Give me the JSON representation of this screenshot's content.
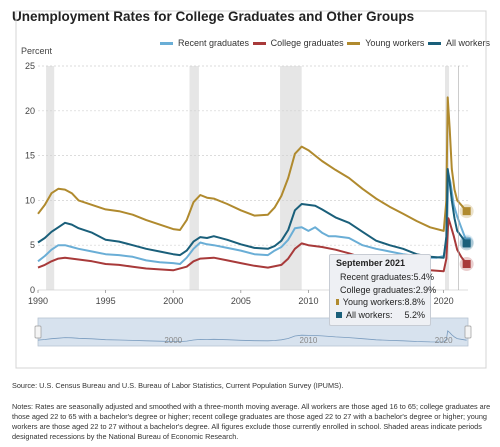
{
  "source_text": "Source: U.S. Census Bureau and U.S. Bureau of Labor Statistics, Current Population Survey (IPUMS).",
  "notes_text": "Notes: Rates are seasonally adjusted and smoothed with a three-month moving average. All workers are those aged 16 to 65; college graduates are those aged 22 to 65 with a bachelor's degree or higher; recent college graduates are those aged 22 to 27 with a bachelor's degree or higher; young workers are those aged 22 to 27 without a bachelor's degree. All figures exclude those currently enrolled in school. Shaded areas indicate periods designated recessions by the National Bureau of Economic Research.",
  "colors": {
    "recent": "#6aaed6",
    "college": "#a83a3a",
    "young": "#b08a2e",
    "all": "#1a5f7a",
    "recession": "#e6e6e6",
    "navigator_fill": "#d7e2ee"
  },
  "tooltip": {
    "title": "September 2021",
    "rows": [
      {
        "label": "Recent graduates:",
        "value": "5.4%"
      },
      {
        "label": "College graduates:",
        "value": "2.9%"
      },
      {
        "label": "Young workers:",
        "value": "8.8%"
      },
      {
        "label": "All workers:",
        "value": "5.2%"
      }
    ]
  },
  "navigator": {
    "tick_labels": [
      "2000",
      "2010",
      "2020"
    ]
  },
  "chart_data": {
    "type": "line",
    "title": "Unemployment Rates for College Graduates and Other Groups",
    "ylabel": "Percent",
    "xlabel": "",
    "xlim": [
      1990,
      2021.8
    ],
    "ylim": [
      0,
      25
    ],
    "x_ticks": [
      "1990",
      "1995",
      "2000",
      "2005",
      "2010",
      "2015",
      "2020"
    ],
    "y_ticks": [
      "0",
      "5",
      "10",
      "15",
      "20",
      "25"
    ],
    "grid": true,
    "legend_position": "top-right",
    "recessions": [
      [
        1990.6,
        1991.2
      ],
      [
        2001.2,
        2001.9
      ],
      [
        2007.9,
        2009.5
      ],
      [
        2020.1,
        2020.4
      ]
    ],
    "series": [
      {
        "name": "Recent graduates",
        "x": [
          1990,
          1990.5,
          1991,
          1991.5,
          1992,
          1992.5,
          1993,
          1994,
          1995,
          1996,
          1997,
          1998,
          1999,
          2000,
          2000.5,
          2001,
          2001.5,
          2002,
          2002.5,
          2003,
          2004,
          2005,
          2006,
          2007,
          2007.5,
          2008,
          2008.5,
          2009,
          2009.5,
          2010,
          2010.5,
          2011,
          2011.5,
          2012,
          2013,
          2014,
          2015,
          2016,
          2017,
          2018,
          2019,
          2019.5,
          2020,
          2020.2,
          2020.35,
          2020.5,
          2020.75,
          2021,
          2021.3,
          2021.7
        ],
        "values": [
          3.2,
          3.8,
          4.5,
          5.0,
          5.0,
          4.8,
          4.6,
          4.3,
          4.0,
          3.9,
          3.7,
          3.3,
          3.1,
          3.0,
          2.9,
          3.6,
          4.6,
          5.3,
          5.1,
          5.0,
          4.7,
          4.4,
          4.0,
          3.9,
          4.4,
          4.8,
          5.6,
          6.9,
          7.0,
          6.6,
          7.0,
          6.4,
          6.0,
          6.0,
          5.8,
          5.0,
          4.6,
          4.3,
          4.0,
          3.8,
          3.6,
          3.6,
          3.8,
          5.5,
          13.0,
          12.0,
          9.5,
          8.2,
          7.0,
          5.4
        ]
      },
      {
        "name": "College graduates",
        "x": [
          1990,
          1990.5,
          1991,
          1991.5,
          1992,
          1993,
          1994,
          1995,
          1996,
          1997,
          1998,
          1999,
          2000,
          2001,
          2001.5,
          2002,
          2003,
          2004,
          2005,
          2006,
          2007,
          2008,
          2008.5,
          2009,
          2009.5,
          2010,
          2011,
          2012,
          2013,
          2014,
          2015,
          2016,
          2017,
          2018,
          2019,
          2020,
          2020.2,
          2020.35,
          2020.5,
          2020.75,
          2021,
          2021.3,
          2021.7
        ],
        "values": [
          2.5,
          2.8,
          3.2,
          3.5,
          3.6,
          3.4,
          3.2,
          2.9,
          2.8,
          2.6,
          2.4,
          2.3,
          2.2,
          2.6,
          3.2,
          3.5,
          3.6,
          3.3,
          3.0,
          2.7,
          2.5,
          2.8,
          3.5,
          4.6,
          5.2,
          5.0,
          4.8,
          4.5,
          4.1,
          3.6,
          3.1,
          2.9,
          2.6,
          2.4,
          2.2,
          2.1,
          3.5,
          8.0,
          7.3,
          6.0,
          4.5,
          3.7,
          2.9
        ]
      },
      {
        "name": "Young workers",
        "x": [
          1990,
          1990.5,
          1991,
          1991.5,
          1992,
          1992.5,
          1993,
          1994,
          1995,
          1996,
          1997,
          1998,
          1999,
          2000,
          2000.5,
          2001,
          2001.5,
          2002,
          2002.5,
          2003,
          2004,
          2005,
          2006,
          2007,
          2007.5,
          2008,
          2008.5,
          2009,
          2009.5,
          2010,
          2010.5,
          2011,
          2012,
          2013,
          2014,
          2015,
          2016,
          2017,
          2018,
          2019,
          2020,
          2020.2,
          2020.3,
          2020.45,
          2020.6,
          2020.8,
          2021,
          2021.3,
          2021.7
        ],
        "values": [
          8.5,
          9.5,
          10.8,
          11.3,
          11.2,
          10.8,
          10.0,
          9.5,
          9.0,
          8.8,
          8.4,
          7.8,
          7.3,
          6.8,
          6.7,
          7.8,
          9.8,
          10.6,
          10.3,
          10.2,
          9.6,
          8.9,
          8.3,
          8.4,
          9.2,
          10.5,
          12.5,
          15.2,
          16.0,
          15.6,
          15.0,
          14.4,
          13.4,
          12.5,
          11.3,
          10.2,
          9.3,
          8.5,
          7.7,
          7.0,
          6.6,
          10.0,
          21.5,
          18.0,
          13.5,
          11.2,
          10.0,
          9.5,
          8.8
        ]
      },
      {
        "name": "All workers",
        "x": [
          1990,
          1990.5,
          1991,
          1991.5,
          1992,
          1992.5,
          1993,
          1994,
          1995,
          1996,
          1997,
          1998,
          1999,
          2000,
          2000.5,
          2001,
          2001.5,
          2002,
          2002.5,
          2003,
          2004,
          2005,
          2006,
          2007,
          2007.5,
          2008,
          2008.5,
          2009,
          2009.5,
          2010,
          2010.5,
          2011,
          2012,
          2013,
          2014,
          2015,
          2016,
          2017,
          2018,
          2019,
          2020,
          2020.2,
          2020.3,
          2020.45,
          2020.6,
          2020.8,
          2021,
          2021.3,
          2021.7
        ],
        "values": [
          5.3,
          5.8,
          6.5,
          7.0,
          7.5,
          7.3,
          6.9,
          6.4,
          5.6,
          5.4,
          5.0,
          4.6,
          4.3,
          4.0,
          3.9,
          4.4,
          5.4,
          5.9,
          5.8,
          6.0,
          5.6,
          5.1,
          4.7,
          4.6,
          4.9,
          5.5,
          6.7,
          8.9,
          9.6,
          9.5,
          9.4,
          9.0,
          8.1,
          7.5,
          6.5,
          5.5,
          5.0,
          4.6,
          4.0,
          3.7,
          3.6,
          6.0,
          13.5,
          12.0,
          10.0,
          8.0,
          6.6,
          6.0,
          5.2
        ]
      }
    ]
  }
}
